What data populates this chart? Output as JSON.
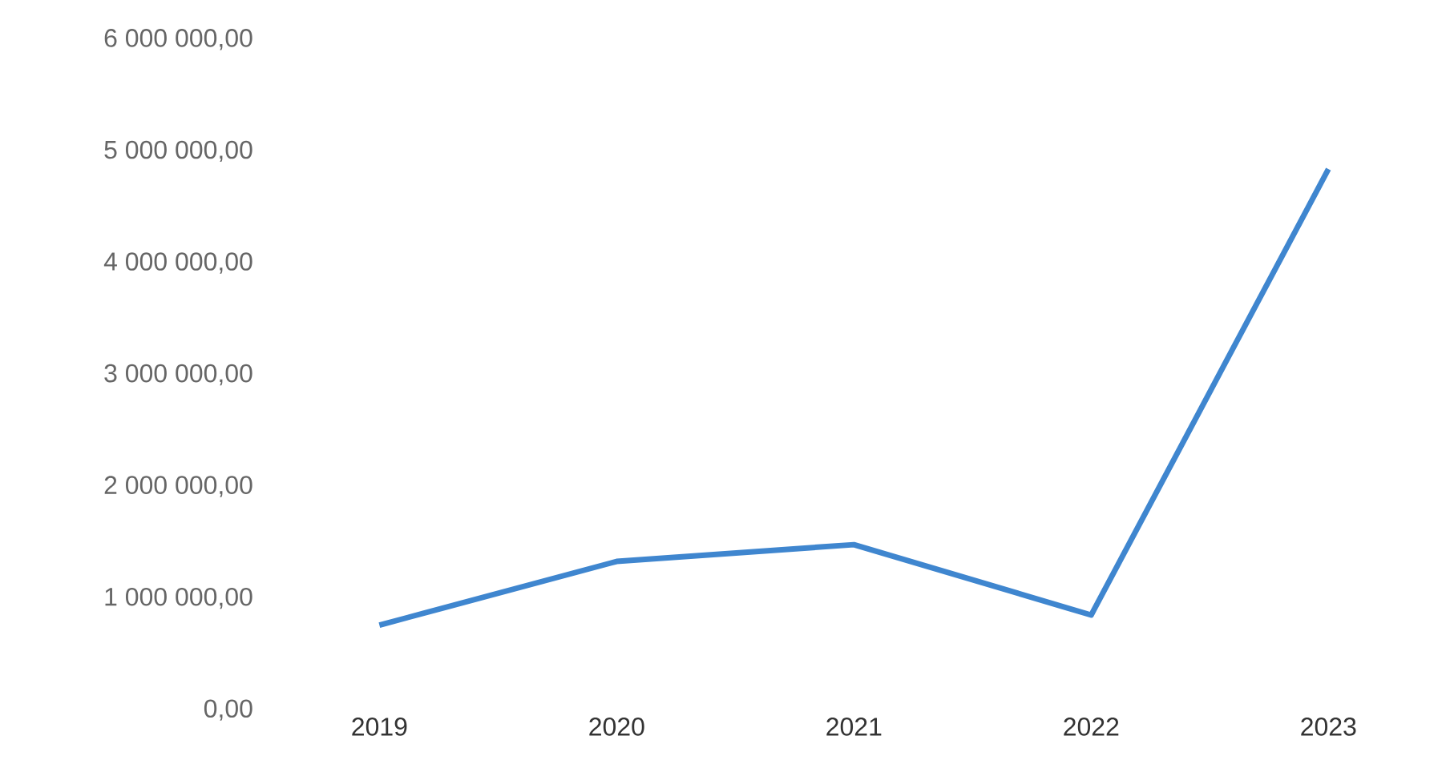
{
  "chart_data": {
    "type": "line",
    "categories": [
      "2019",
      "2020",
      "2021",
      "2022",
      "2023"
    ],
    "series": [
      {
        "color": "#3f86cf",
        "values": [
          760000,
          1330000,
          1480000,
          850000,
          4840000
        ]
      }
    ],
    "ylim": [
      0,
      6000000
    ],
    "yticks": [
      {
        "value": 0,
        "label": "0,00"
      },
      {
        "value": 1000000,
        "label": "1 000 000,00"
      },
      {
        "value": 2000000,
        "label": "2 000 000,00"
      },
      {
        "value": 3000000,
        "label": "3 000 000,00"
      },
      {
        "value": 4000000,
        "label": "4 000 000,00"
      },
      {
        "value": 5000000,
        "label": "5 000 000,00"
      },
      {
        "value": 6000000,
        "label": "6 000 000,00"
      }
    ],
    "grid": false,
    "legend": false,
    "marker": "none",
    "line_style": "solid"
  }
}
